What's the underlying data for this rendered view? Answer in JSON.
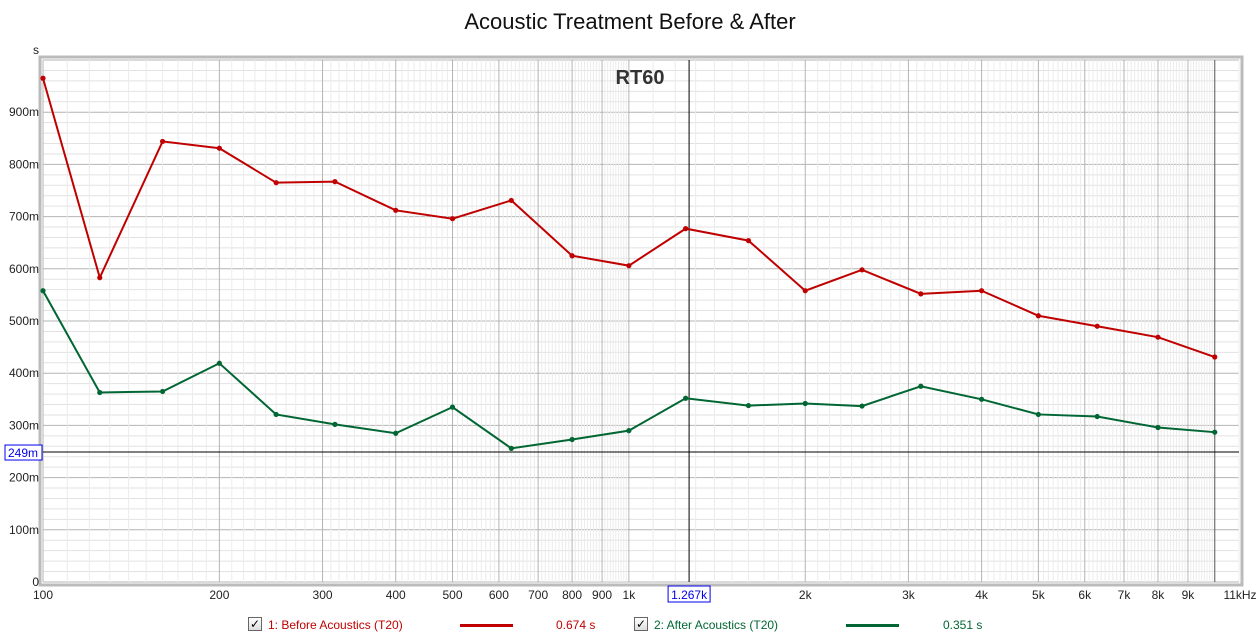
{
  "title": "Acoustic Treatment Before & After",
  "chart_data": {
    "type": "line",
    "title": "Acoustic Treatment Before & After",
    "plot_label": "RT60",
    "ylabel": "s",
    "xunit": "kHz",
    "xscale": "log",
    "xlim": [
      100,
      11000
    ],
    "ylim": [
      0,
      1.0
    ],
    "grid": true,
    "x": [
      100,
      125,
      160,
      200,
      250,
      315,
      400,
      500,
      630,
      800,
      1000,
      1250,
      1600,
      2000,
      2500,
      3150,
      4000,
      5000,
      6300,
      8000,
      10000
    ],
    "xticks": [
      {
        "v": 100,
        "label": "100"
      },
      {
        "v": 200,
        "label": "200"
      },
      {
        "v": 300,
        "label": "300"
      },
      {
        "v": 400,
        "label": "400"
      },
      {
        "v": 500,
        "label": "500"
      },
      {
        "v": 600,
        "label": "600"
      },
      {
        "v": 700,
        "label": "700"
      },
      {
        "v": 800,
        "label": "800"
      },
      {
        "v": 900,
        "label": "900"
      },
      {
        "v": 1000,
        "label": "1k"
      },
      {
        "v": 2000,
        "label": "2k"
      },
      {
        "v": 3000,
        "label": "3k"
      },
      {
        "v": 4000,
        "label": "4k"
      },
      {
        "v": 5000,
        "label": "5k"
      },
      {
        "v": 6000,
        "label": "6k"
      },
      {
        "v": 7000,
        "label": "7k"
      },
      {
        "v": 8000,
        "label": "8k"
      },
      {
        "v": 9000,
        "label": "9k"
      },
      {
        "v": 11000,
        "label": "11kHz"
      }
    ],
    "yticks": [
      {
        "v": 0,
        "label": "0"
      },
      {
        "v": 0.1,
        "label": "100m"
      },
      {
        "v": 0.2,
        "label": "200m"
      },
      {
        "v": 0.3,
        "label": "300m"
      },
      {
        "v": 0.4,
        "label": "400m"
      },
      {
        "v": 0.5,
        "label": "500m"
      },
      {
        "v": 0.6,
        "label": "600m"
      },
      {
        "v": 0.7,
        "label": "700m"
      },
      {
        "v": 0.8,
        "label": "800m"
      },
      {
        "v": 0.9,
        "label": "900m"
      }
    ],
    "cursor": {
      "x": 1267,
      "x_label": "1.267k",
      "y": 0.249,
      "y_label": "249m"
    },
    "marker_line_x": 10000,
    "series": [
      {
        "name": "1: Before Acoustics (T20)",
        "color": "#c00000",
        "cursor_value": "0.674 s",
        "checked": true,
        "values": [
          0.965,
          0.583,
          0.844,
          0.831,
          0.765,
          0.767,
          0.712,
          0.696,
          0.731,
          0.625,
          0.606,
          0.677,
          0.654,
          0.558,
          0.598,
          0.552,
          0.558,
          0.51,
          0.49,
          0.469,
          0.431
        ]
      },
      {
        "name": "2: After Acoustics (T20)",
        "color": "#006633",
        "cursor_value": "0.351 s",
        "checked": true,
        "values": [
          0.558,
          0.363,
          0.365,
          0.419,
          0.321,
          0.302,
          0.285,
          0.335,
          0.256,
          0.273,
          0.29,
          0.352,
          0.338,
          0.342,
          0.337,
          0.375,
          0.35,
          0.321,
          0.317,
          0.296,
          0.287
        ]
      }
    ]
  }
}
